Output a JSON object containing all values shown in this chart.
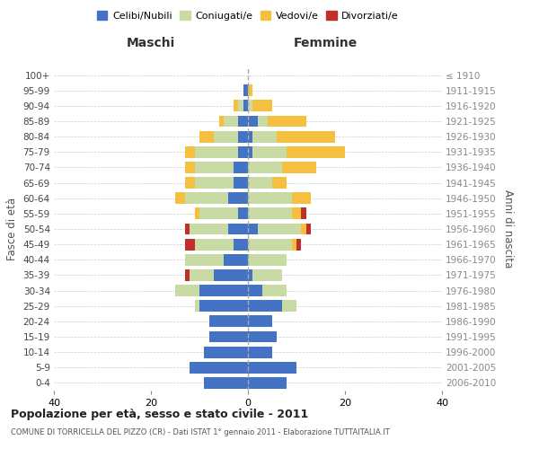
{
  "age_groups": [
    "0-4",
    "5-9",
    "10-14",
    "15-19",
    "20-24",
    "25-29",
    "30-34",
    "35-39",
    "40-44",
    "45-49",
    "50-54",
    "55-59",
    "60-64",
    "65-69",
    "70-74",
    "75-79",
    "80-84",
    "85-89",
    "90-94",
    "95-99",
    "100+"
  ],
  "birth_years": [
    "2006-2010",
    "2001-2005",
    "1996-2000",
    "1991-1995",
    "1986-1990",
    "1981-1985",
    "1976-1980",
    "1971-1975",
    "1966-1970",
    "1961-1965",
    "1956-1960",
    "1951-1955",
    "1946-1950",
    "1941-1945",
    "1936-1940",
    "1931-1935",
    "1926-1930",
    "1921-1925",
    "1916-1920",
    "1911-1915",
    "≤ 1910"
  ],
  "maschi": {
    "celibi": [
      9,
      12,
      9,
      8,
      8,
      10,
      10,
      7,
      5,
      3,
      4,
      2,
      4,
      3,
      3,
      2,
      2,
      2,
      1,
      1,
      0
    ],
    "coniugati": [
      0,
      0,
      0,
      0,
      0,
      1,
      5,
      5,
      8,
      8,
      8,
      8,
      9,
      8,
      8,
      9,
      5,
      3,
      1,
      0,
      0
    ],
    "vedovi": [
      0,
      0,
      0,
      0,
      0,
      0,
      0,
      0,
      0,
      0,
      0,
      1,
      2,
      2,
      2,
      2,
      3,
      1,
      1,
      0,
      0
    ],
    "divorziati": [
      0,
      0,
      0,
      0,
      0,
      0,
      0,
      1,
      0,
      2,
      1,
      0,
      0,
      0,
      0,
      0,
      0,
      0,
      0,
      0,
      0
    ]
  },
  "femmine": {
    "nubili": [
      8,
      10,
      5,
      6,
      5,
      7,
      3,
      1,
      0,
      0,
      2,
      0,
      0,
      0,
      0,
      1,
      1,
      2,
      0,
      0,
      0
    ],
    "coniugate": [
      0,
      0,
      0,
      0,
      0,
      3,
      5,
      6,
      8,
      9,
      9,
      9,
      9,
      5,
      7,
      7,
      5,
      2,
      1,
      0,
      0
    ],
    "vedove": [
      0,
      0,
      0,
      0,
      0,
      0,
      0,
      0,
      0,
      1,
      1,
      2,
      4,
      3,
      7,
      12,
      12,
      8,
      4,
      1,
      0
    ],
    "divorziate": [
      0,
      0,
      0,
      0,
      0,
      0,
      0,
      0,
      0,
      1,
      1,
      1,
      0,
      0,
      0,
      0,
      0,
      0,
      0,
      0,
      0
    ]
  },
  "colors": {
    "celibi": "#4472C4",
    "coniugati": "#c8dba4",
    "vedovi": "#F5C040",
    "divorziati": "#C0302A"
  },
  "xlim": 40,
  "title": "Popolazione per età, sesso e stato civile - 2011",
  "subtitle": "COMUNE DI TORRICELLA DEL PIZZO (CR) - Dati ISTAT 1° gennaio 2011 - Elaborazione TUTTAITALIA.IT",
  "ylabel": "Fasce di età",
  "ylabel_right": "Anni di nascita",
  "legend_labels": [
    "Celibi/Nubili",
    "Coniugati/e",
    "Vedovi/e",
    "Divorziati/e"
  ],
  "maschi_label": "Maschi",
  "femmine_label": "Femmine",
  "bg_color": "#ffffff",
  "grid_color": "#cccccc",
  "bar_height": 0.75
}
